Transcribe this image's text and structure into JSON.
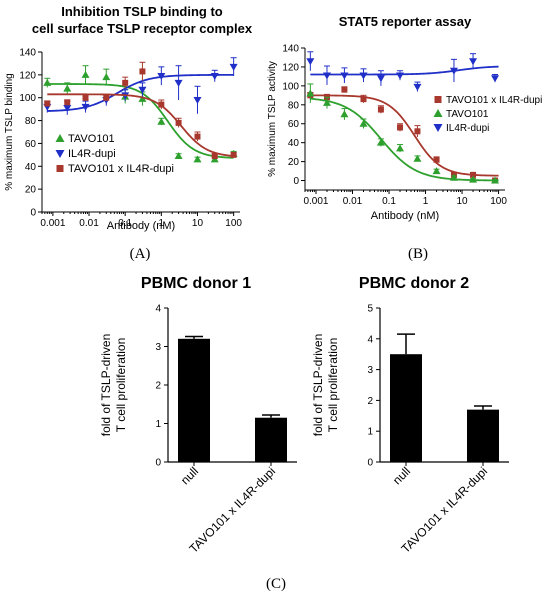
{
  "chart_data": [
    {
      "panel": "A",
      "type": "line",
      "title_lines": [
        "Inhibition TSLP binding to",
        "cell surface TSLP receptor complex"
      ],
      "xlabel": "Antibody (nM)",
      "ylabel": "% maximum TSLP binding",
      "xscale": "log",
      "xlim": [
        0.0005,
        150
      ],
      "ylim": [
        0,
        140
      ],
      "xticks": [
        0.001,
        0.01,
        0.1,
        1,
        10,
        100
      ],
      "xtick_labels": [
        "0.001",
        "0.01",
        "0.1",
        "1",
        "10",
        "100"
      ],
      "yticks": [
        0,
        20,
        40,
        60,
        80,
        100,
        120,
        140
      ],
      "ytick_labels": [
        "0",
        "20",
        "40",
        "60",
        "80",
        "100",
        "120",
        "140"
      ],
      "legend_position": "bottom-left",
      "grid": false,
      "series": [
        {
          "name": "TAVO101",
          "color": "#2ea02e",
          "marker": "triangle-up",
          "points": [
            {
              "x": 0.0007,
              "y": 113,
              "err": 4
            },
            {
              "x": 0.0025,
              "y": 108,
              "err": 5
            },
            {
              "x": 0.008,
              "y": 120,
              "err": 8
            },
            {
              "x": 0.03,
              "y": 118,
              "err": 7
            },
            {
              "x": 0.1,
              "y": 101,
              "err": 6
            },
            {
              "x": 0.3,
              "y": 99,
              "err": 6
            },
            {
              "x": 1.0,
              "y": 79,
              "err": 3
            },
            {
              "x": 3.0,
              "y": 49,
              "err": 2
            },
            {
              "x": 10,
              "y": 46,
              "err": 2
            },
            {
              "x": 30,
              "y": 46,
              "err": 2
            },
            {
              "x": 100,
              "y": 51,
              "err": 2
            }
          ],
          "fit": {
            "top": 112,
            "bottom": 47,
            "ec50": 1.5,
            "hill": 1.2
          }
        },
        {
          "name": "IL4R-dupi",
          "color": "#1f2fc8",
          "marker": "triangle-down",
          "points": [
            {
              "x": 0.0007,
              "y": 92,
              "err": 5
            },
            {
              "x": 0.0025,
              "y": 91,
              "err": 6
            },
            {
              "x": 0.008,
              "y": 92,
              "err": 5
            },
            {
              "x": 0.03,
              "y": 98,
              "err": 5
            },
            {
              "x": 0.1,
              "y": 102,
              "err": 5
            },
            {
              "x": 0.3,
              "y": 107,
              "err": 6
            },
            {
              "x": 1.0,
              "y": 119,
              "err": 8
            },
            {
              "x": 3.0,
              "y": 113,
              "err": 15
            },
            {
              "x": 10,
              "y": 98,
              "err": 12
            },
            {
              "x": 30,
              "y": 119,
              "err": 5
            },
            {
              "x": 100,
              "y": 127,
              "err": 8
            }
          ],
          "fit": {
            "top": 120,
            "bottom": 88,
            "ec50": 0.06,
            "hill": -1.0
          }
        },
        {
          "name": "TAVO101 x IL4R-dupi",
          "color": "#a8382e",
          "marker": "square",
          "points": [
            {
              "x": 0.0007,
              "y": 95,
              "err": 2
            },
            {
              "x": 0.0025,
              "y": 96,
              "err": 2
            },
            {
              "x": 0.008,
              "y": 100,
              "err": 3
            },
            {
              "x": 0.03,
              "y": 100,
              "err": 3
            },
            {
              "x": 0.1,
              "y": 113,
              "err": 5
            },
            {
              "x": 0.3,
              "y": 123,
              "err": 8
            },
            {
              "x": 1.0,
              "y": 94,
              "err": 4
            },
            {
              "x": 3.0,
              "y": 78,
              "err": 4
            },
            {
              "x": 10,
              "y": 66,
              "err": 4
            },
            {
              "x": 30,
              "y": 49,
              "err": 2
            },
            {
              "x": 100,
              "y": 50,
              "err": 2
            }
          ],
          "fit": {
            "top": 103,
            "bottom": 48,
            "ec50": 3.5,
            "hill": 1.2
          }
        }
      ]
    },
    {
      "panel": "B",
      "type": "line",
      "title_lines": [
        "STAT5 reporter assay"
      ],
      "xlabel": "Antibody (nM)",
      "ylabel": "% maximum TSLP activity",
      "xscale": "log",
      "xlim": [
        0.0005,
        150
      ],
      "ylim": [
        -10,
        140
      ],
      "xticks": [
        0.001,
        0.01,
        0.1,
        1,
        10,
        100
      ],
      "xtick_labels": [
        "0.001",
        "0.01",
        "0.1",
        "1",
        "10",
        "100"
      ],
      "yticks": [
        0,
        20,
        40,
        60,
        80,
        100,
        120,
        140
      ],
      "ytick_labels": [
        "0",
        "20",
        "40",
        "60",
        "80",
        "100",
        "120",
        "140"
      ],
      "legend_position": "right",
      "grid": false,
      "series": [
        {
          "name": "TAVO101 x IL4R-dupi",
          "color": "#a8382e",
          "marker": "square",
          "points": [
            {
              "x": 0.0007,
              "y": 90,
              "err": 3
            },
            {
              "x": 0.002,
              "y": 88,
              "err": 3
            },
            {
              "x": 0.006,
              "y": 96,
              "err": 3
            },
            {
              "x": 0.02,
              "y": 86,
              "err": 4
            },
            {
              "x": 0.06,
              "y": 75,
              "err": 4
            },
            {
              "x": 0.2,
              "y": 56,
              "err": 4
            },
            {
              "x": 0.6,
              "y": 52,
              "err": 6
            },
            {
              "x": 2.0,
              "y": 22,
              "err": 3
            },
            {
              "x": 6.0,
              "y": 6,
              "err": 2
            },
            {
              "x": 20,
              "y": 6,
              "err": 2
            },
            {
              "x": 80,
              "y": 0,
              "err": 1
            }
          ],
          "fit": {
            "top": 90,
            "bottom": 5,
            "ec50": 0.5,
            "hill": 1.2
          }
        },
        {
          "name": "TAVO101",
          "color": "#2ea02e",
          "marker": "triangle-up",
          "points": [
            {
              "x": 0.0007,
              "y": 92,
              "err": 10
            },
            {
              "x": 0.002,
              "y": 82,
              "err": 6
            },
            {
              "x": 0.006,
              "y": 70,
              "err": 6
            },
            {
              "x": 0.02,
              "y": 60,
              "err": 5
            },
            {
              "x": 0.06,
              "y": 40,
              "err": 4
            },
            {
              "x": 0.2,
              "y": 34,
              "err": 4
            },
            {
              "x": 0.6,
              "y": 23,
              "err": 3
            },
            {
              "x": 2.0,
              "y": 10,
              "err": 2
            },
            {
              "x": 6.0,
              "y": 3,
              "err": 2
            },
            {
              "x": 20,
              "y": 1,
              "err": 1
            },
            {
              "x": 80,
              "y": 0,
              "err": 1
            }
          ],
          "fit": {
            "top": 88,
            "bottom": 0,
            "ec50": 0.06,
            "hill": 0.9
          }
        },
        {
          "name": "IL4R-dupi",
          "color": "#1f2fc8",
          "marker": "triangle-down",
          "points": [
            {
              "x": 0.0007,
              "y": 126,
              "err": 10
            },
            {
              "x": 0.002,
              "y": 111,
              "err": 10
            },
            {
              "x": 0.006,
              "y": 111,
              "err": 8
            },
            {
              "x": 0.02,
              "y": 111,
              "err": 7
            },
            {
              "x": 0.06,
              "y": 108,
              "err": 8
            },
            {
              "x": 0.2,
              "y": 111,
              "err": 5
            },
            {
              "x": 0.6,
              "y": 99,
              "err": 5
            },
            {
              "x": 6.0,
              "y": 116,
              "err": 12
            },
            {
              "x": 20,
              "y": 126,
              "err": 8
            },
            {
              "x": 80,
              "y": 108,
              "err": 4
            }
          ],
          "fit": {
            "top": 121,
            "bottom": 112,
            "ec50": 8,
            "hill": -1.0
          }
        }
      ]
    },
    {
      "panel": "C1",
      "type": "bar",
      "title": "PBMC donor 1",
      "ylabel_lines": [
        "fold of TSLP-driven",
        "T cell proliferation"
      ],
      "categories": [
        "null",
        "TAVO101 x IL4R-dupi"
      ],
      "values": [
        3.2,
        1.15
      ],
      "errors": [
        0.06,
        0.07
      ],
      "ylim": [
        0,
        4
      ],
      "yticks": [
        0,
        1,
        2,
        3,
        4
      ],
      "ytick_labels": [
        "0",
        "1",
        "2",
        "3",
        "4"
      ],
      "bar_color": "#000000"
    },
    {
      "panel": "C2",
      "type": "bar",
      "title": "PBMC donor 2",
      "ylabel_lines": [
        "fold of TSLP-driven",
        "T cell proliferation"
      ],
      "categories": [
        "null",
        "TAVO101 x IL4R-dupi"
      ],
      "values": [
        3.5,
        1.7
      ],
      "errors": [
        0.65,
        0.12
      ],
      "ylim": [
        0,
        5
      ],
      "yticks": [
        0,
        1,
        2,
        3,
        4,
        5
      ],
      "ytick_labels": [
        "0",
        "1",
        "2",
        "3",
        "4",
        "5"
      ],
      "bar_color": "#000000"
    }
  ],
  "panel_labels": [
    "(A)",
    "(B)",
    "(C)"
  ]
}
